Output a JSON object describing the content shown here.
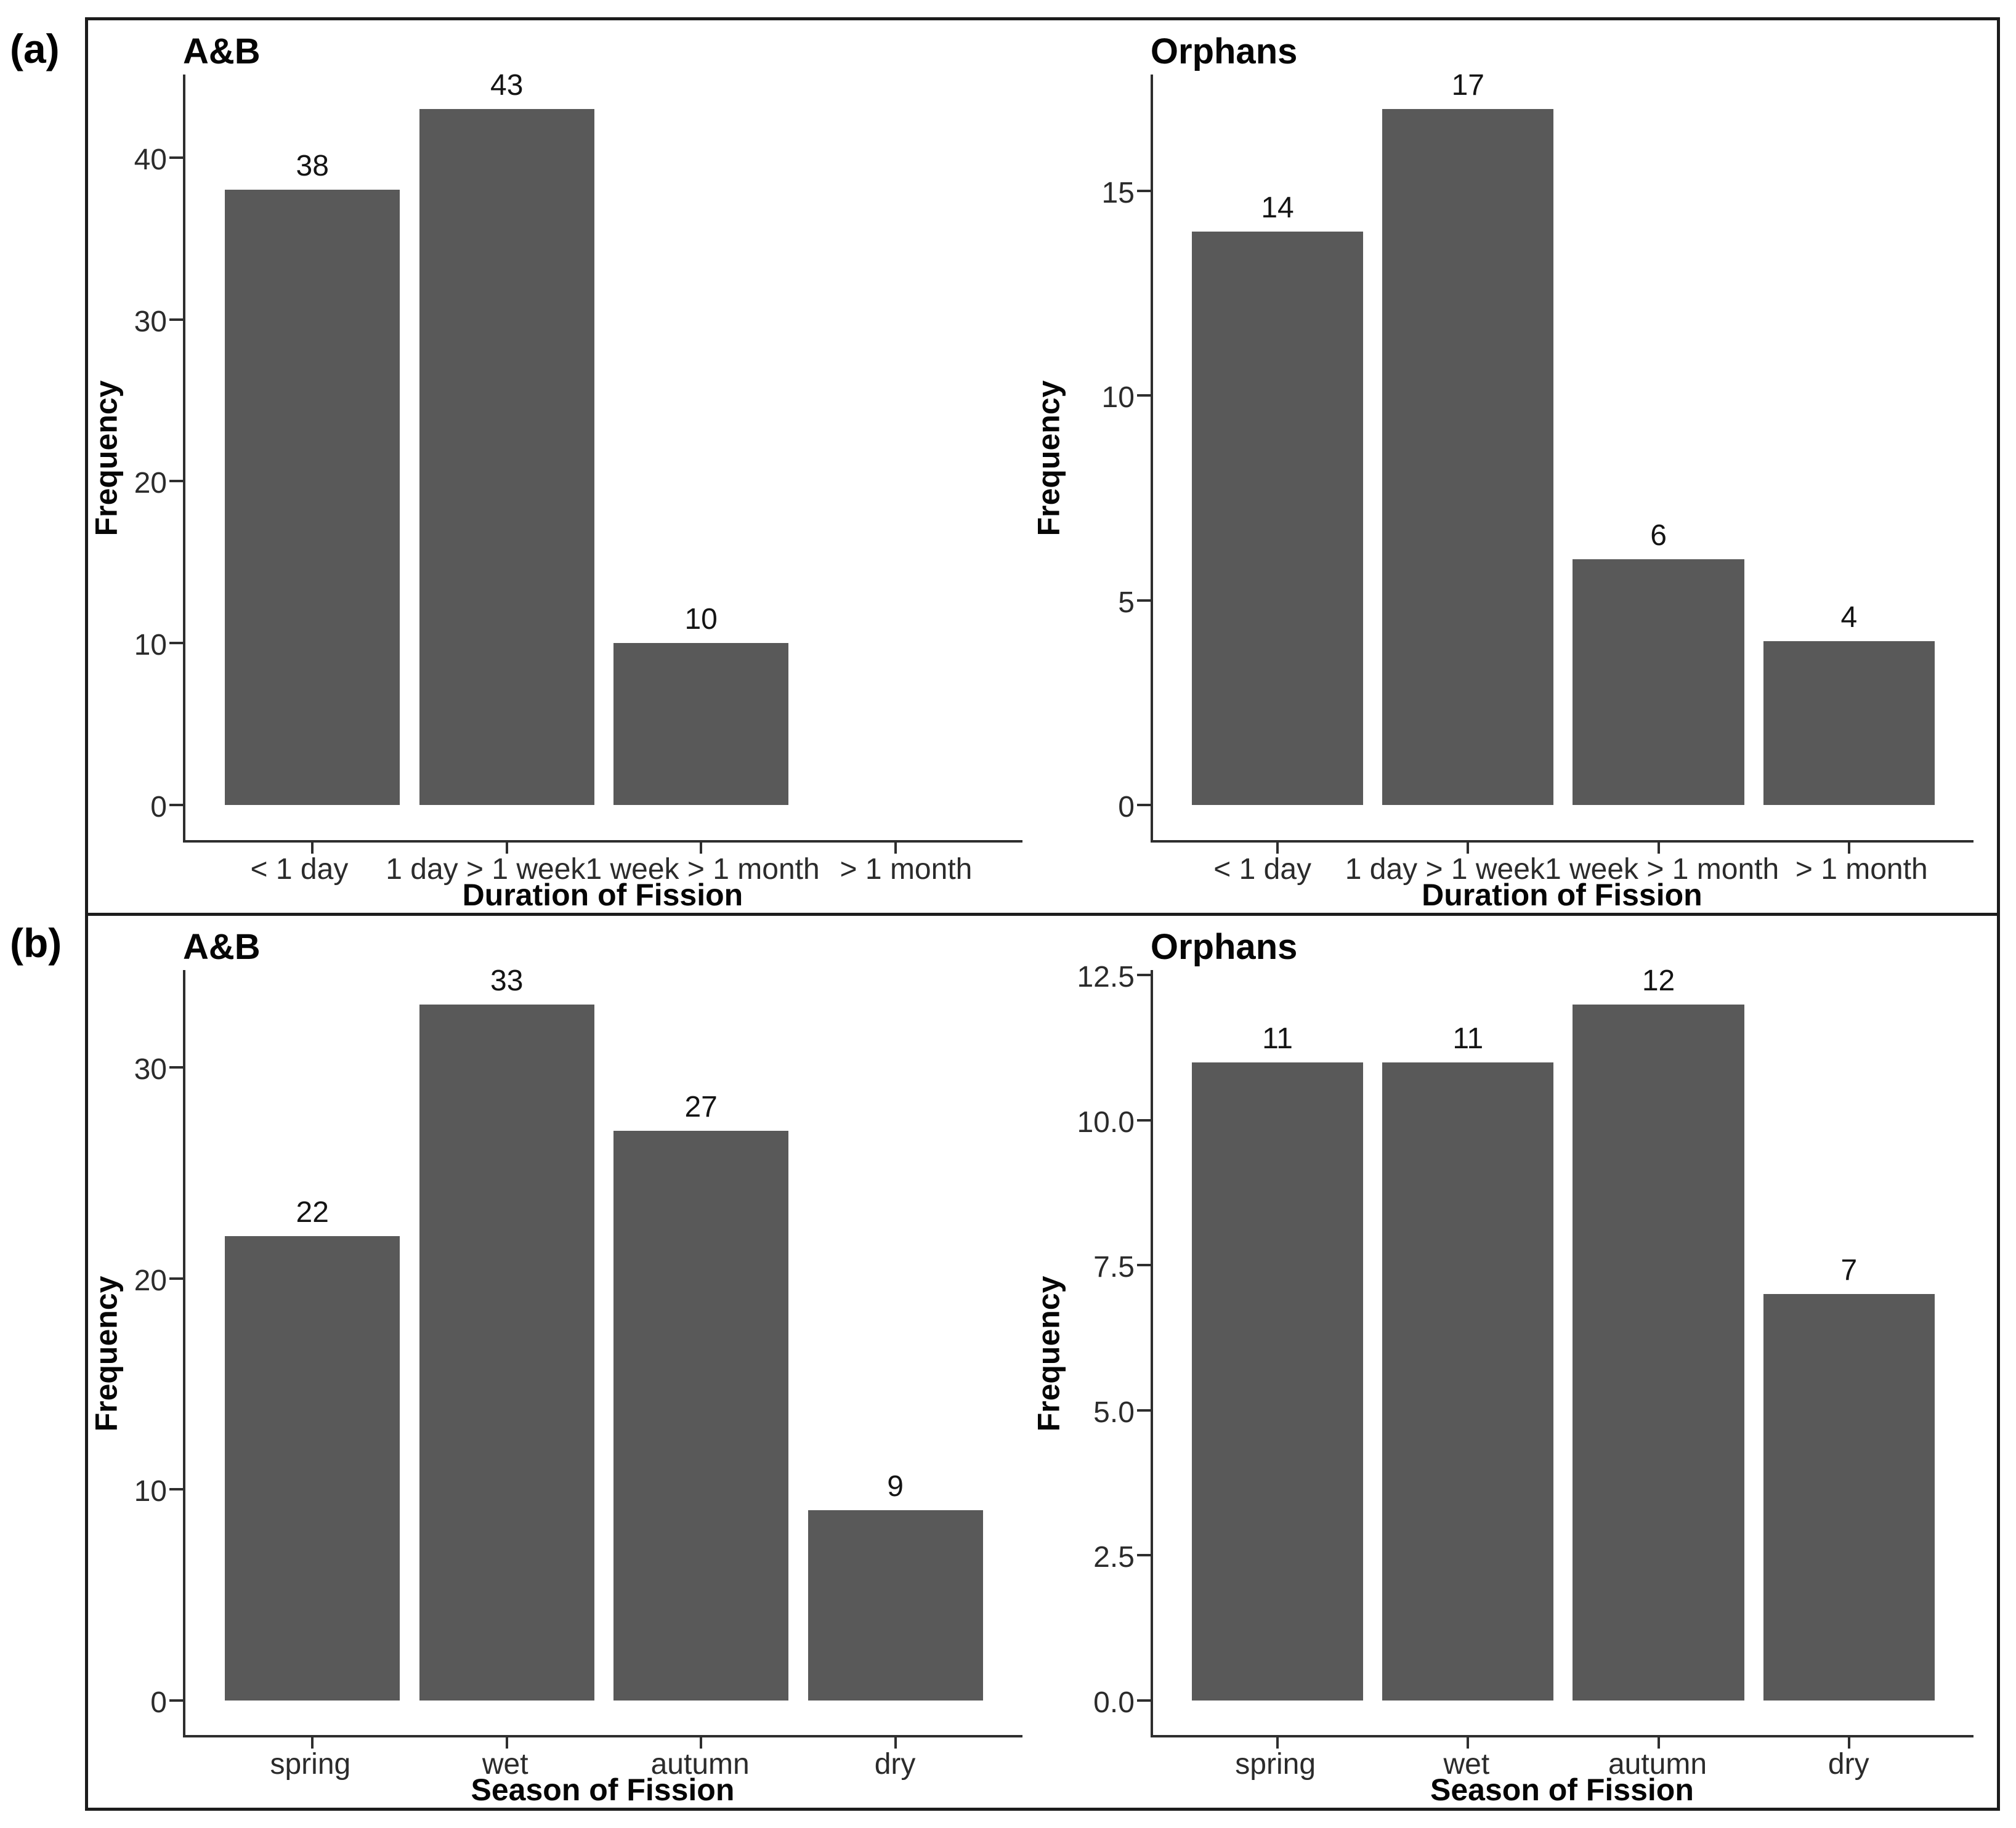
{
  "figure": {
    "panel_a_label": "(a)",
    "panel_b_label": "(b)"
  },
  "style": {
    "bar_color": "#595959",
    "axis_color": "#2e2e2e",
    "border_color": "#1c1c1c",
    "tick_text_color": "#2b2b2b",
    "title_text_color": "#060606"
  },
  "chart_data": [
    {
      "type": "bar",
      "panel": "a",
      "position": "left",
      "title": "A&B",
      "xlabel": "Duration of Fission",
      "ylabel": "Frequency",
      "categories": [
        "< 1 day",
        "1 day > 1 week",
        "1 week > 1 month",
        "> 1 month"
      ],
      "values": [
        38,
        43,
        10,
        0
      ],
      "bar_labels": [
        "38",
        "43",
        "10",
        ""
      ],
      "ytick_values": [
        0,
        10,
        20,
        30,
        40
      ],
      "ytick_labels": [
        "0",
        "10",
        "20",
        "30",
        "40"
      ],
      "panel_range": [
        -2.15,
        45.15
      ],
      "ylim": [
        0,
        45.15
      ],
      "grid": false,
      "legend": false
    },
    {
      "type": "bar",
      "panel": "a",
      "position": "right",
      "title": "Orphans",
      "xlabel": "Duration of Fission",
      "ylabel": "Frequency",
      "categories": [
        "< 1 day",
        "1 day > 1 week",
        "1 week > 1 month",
        "> 1 month"
      ],
      "values": [
        14,
        17,
        6,
        4
      ],
      "bar_labels": [
        "14",
        "17",
        "6",
        "4"
      ],
      "ytick_values": [
        0,
        5,
        10,
        15
      ],
      "ytick_labels": [
        "0",
        "5",
        "10",
        "15"
      ],
      "panel_range": [
        -0.85,
        17.85
      ],
      "ylim": [
        0,
        17.85
      ],
      "grid": false,
      "legend": false
    },
    {
      "type": "bar",
      "panel": "b",
      "position": "left",
      "title": "A&B",
      "xlabel": "Season of Fission",
      "ylabel": "Frequency",
      "categories": [
        "spring",
        "wet",
        "autumn",
        "dry"
      ],
      "values": [
        22,
        33,
        27,
        9
      ],
      "bar_labels": [
        "22",
        "33",
        "27",
        "9"
      ],
      "ytick_values": [
        0,
        10,
        20,
        30
      ],
      "ytick_labels": [
        "0",
        "10",
        "20",
        "30"
      ],
      "panel_range": [
        -1.65,
        34.65
      ],
      "ylim": [
        0,
        34.65
      ],
      "grid": false,
      "legend": false
    },
    {
      "type": "bar",
      "panel": "b",
      "position": "right",
      "title": "Orphans",
      "xlabel": "Season of Fission",
      "ylabel": "Frequency",
      "categories": [
        "spring",
        "wet",
        "autumn",
        "dry"
      ],
      "values": [
        11,
        11,
        12,
        7
      ],
      "bar_labels": [
        "11",
        "11",
        "12",
        "7"
      ],
      "ytick_values": [
        0,
        2.5,
        5,
        7.5,
        10,
        12.5
      ],
      "ytick_labels": [
        "0.0",
        "2.5",
        "5.0",
        "7.5",
        "10.0",
        "12.5"
      ],
      "panel_range": [
        -0.6,
        12.6
      ],
      "ylim": [
        0,
        12.6
      ],
      "grid": false,
      "legend": false
    }
  ]
}
